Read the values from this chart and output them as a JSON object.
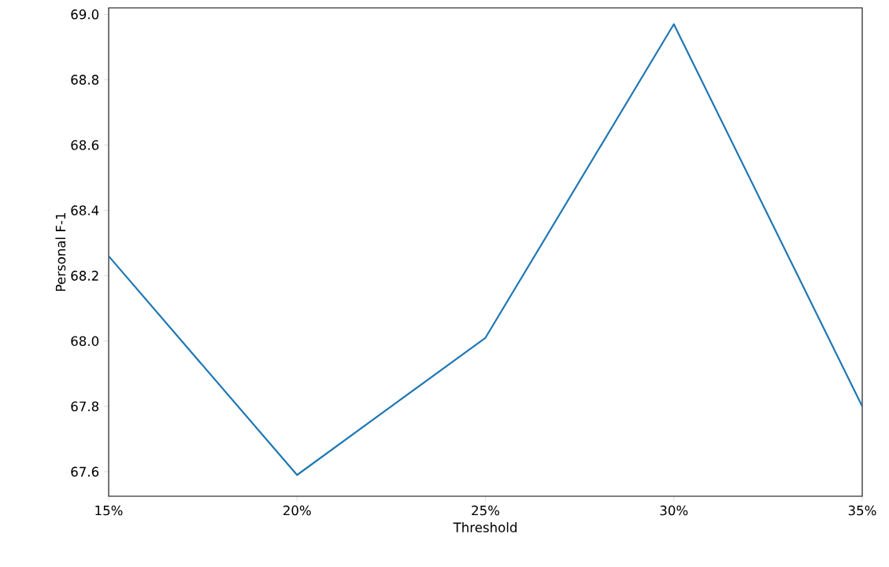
{
  "chart_data": {
    "type": "line",
    "xlabel": "Threshold",
    "ylabel": "Personal F-1",
    "x": [
      15,
      20,
      25,
      30,
      35
    ],
    "series": [
      {
        "color": "#1f77b4",
        "values": [
          68.26,
          67.59,
          68.01,
          68.97,
          67.8
        ]
      }
    ],
    "xlim": [
      15,
      35
    ],
    "ylim": [
      67.525,
      69.02
    ],
    "xticks": [
      {
        "value": 15,
        "label": "15%"
      },
      {
        "value": 20,
        "label": "20%"
      },
      {
        "value": 25,
        "label": "25%"
      },
      {
        "value": 30,
        "label": "30%"
      },
      {
        "value": 35,
        "label": "35%"
      }
    ],
    "yticks": [
      {
        "value": 67.6,
        "label": "67.6"
      },
      {
        "value": 67.8,
        "label": "67.8"
      },
      {
        "value": 68.0,
        "label": "68.0"
      },
      {
        "value": 68.2,
        "label": "68.2"
      },
      {
        "value": 68.4,
        "label": "68.4"
      },
      {
        "value": 68.6,
        "label": "68.6"
      },
      {
        "value": 68.8,
        "label": "68.8"
      },
      {
        "value": 69.0,
        "label": "69.0"
      }
    ],
    "grid": false,
    "marker": "none",
    "line_style": "solid"
  }
}
